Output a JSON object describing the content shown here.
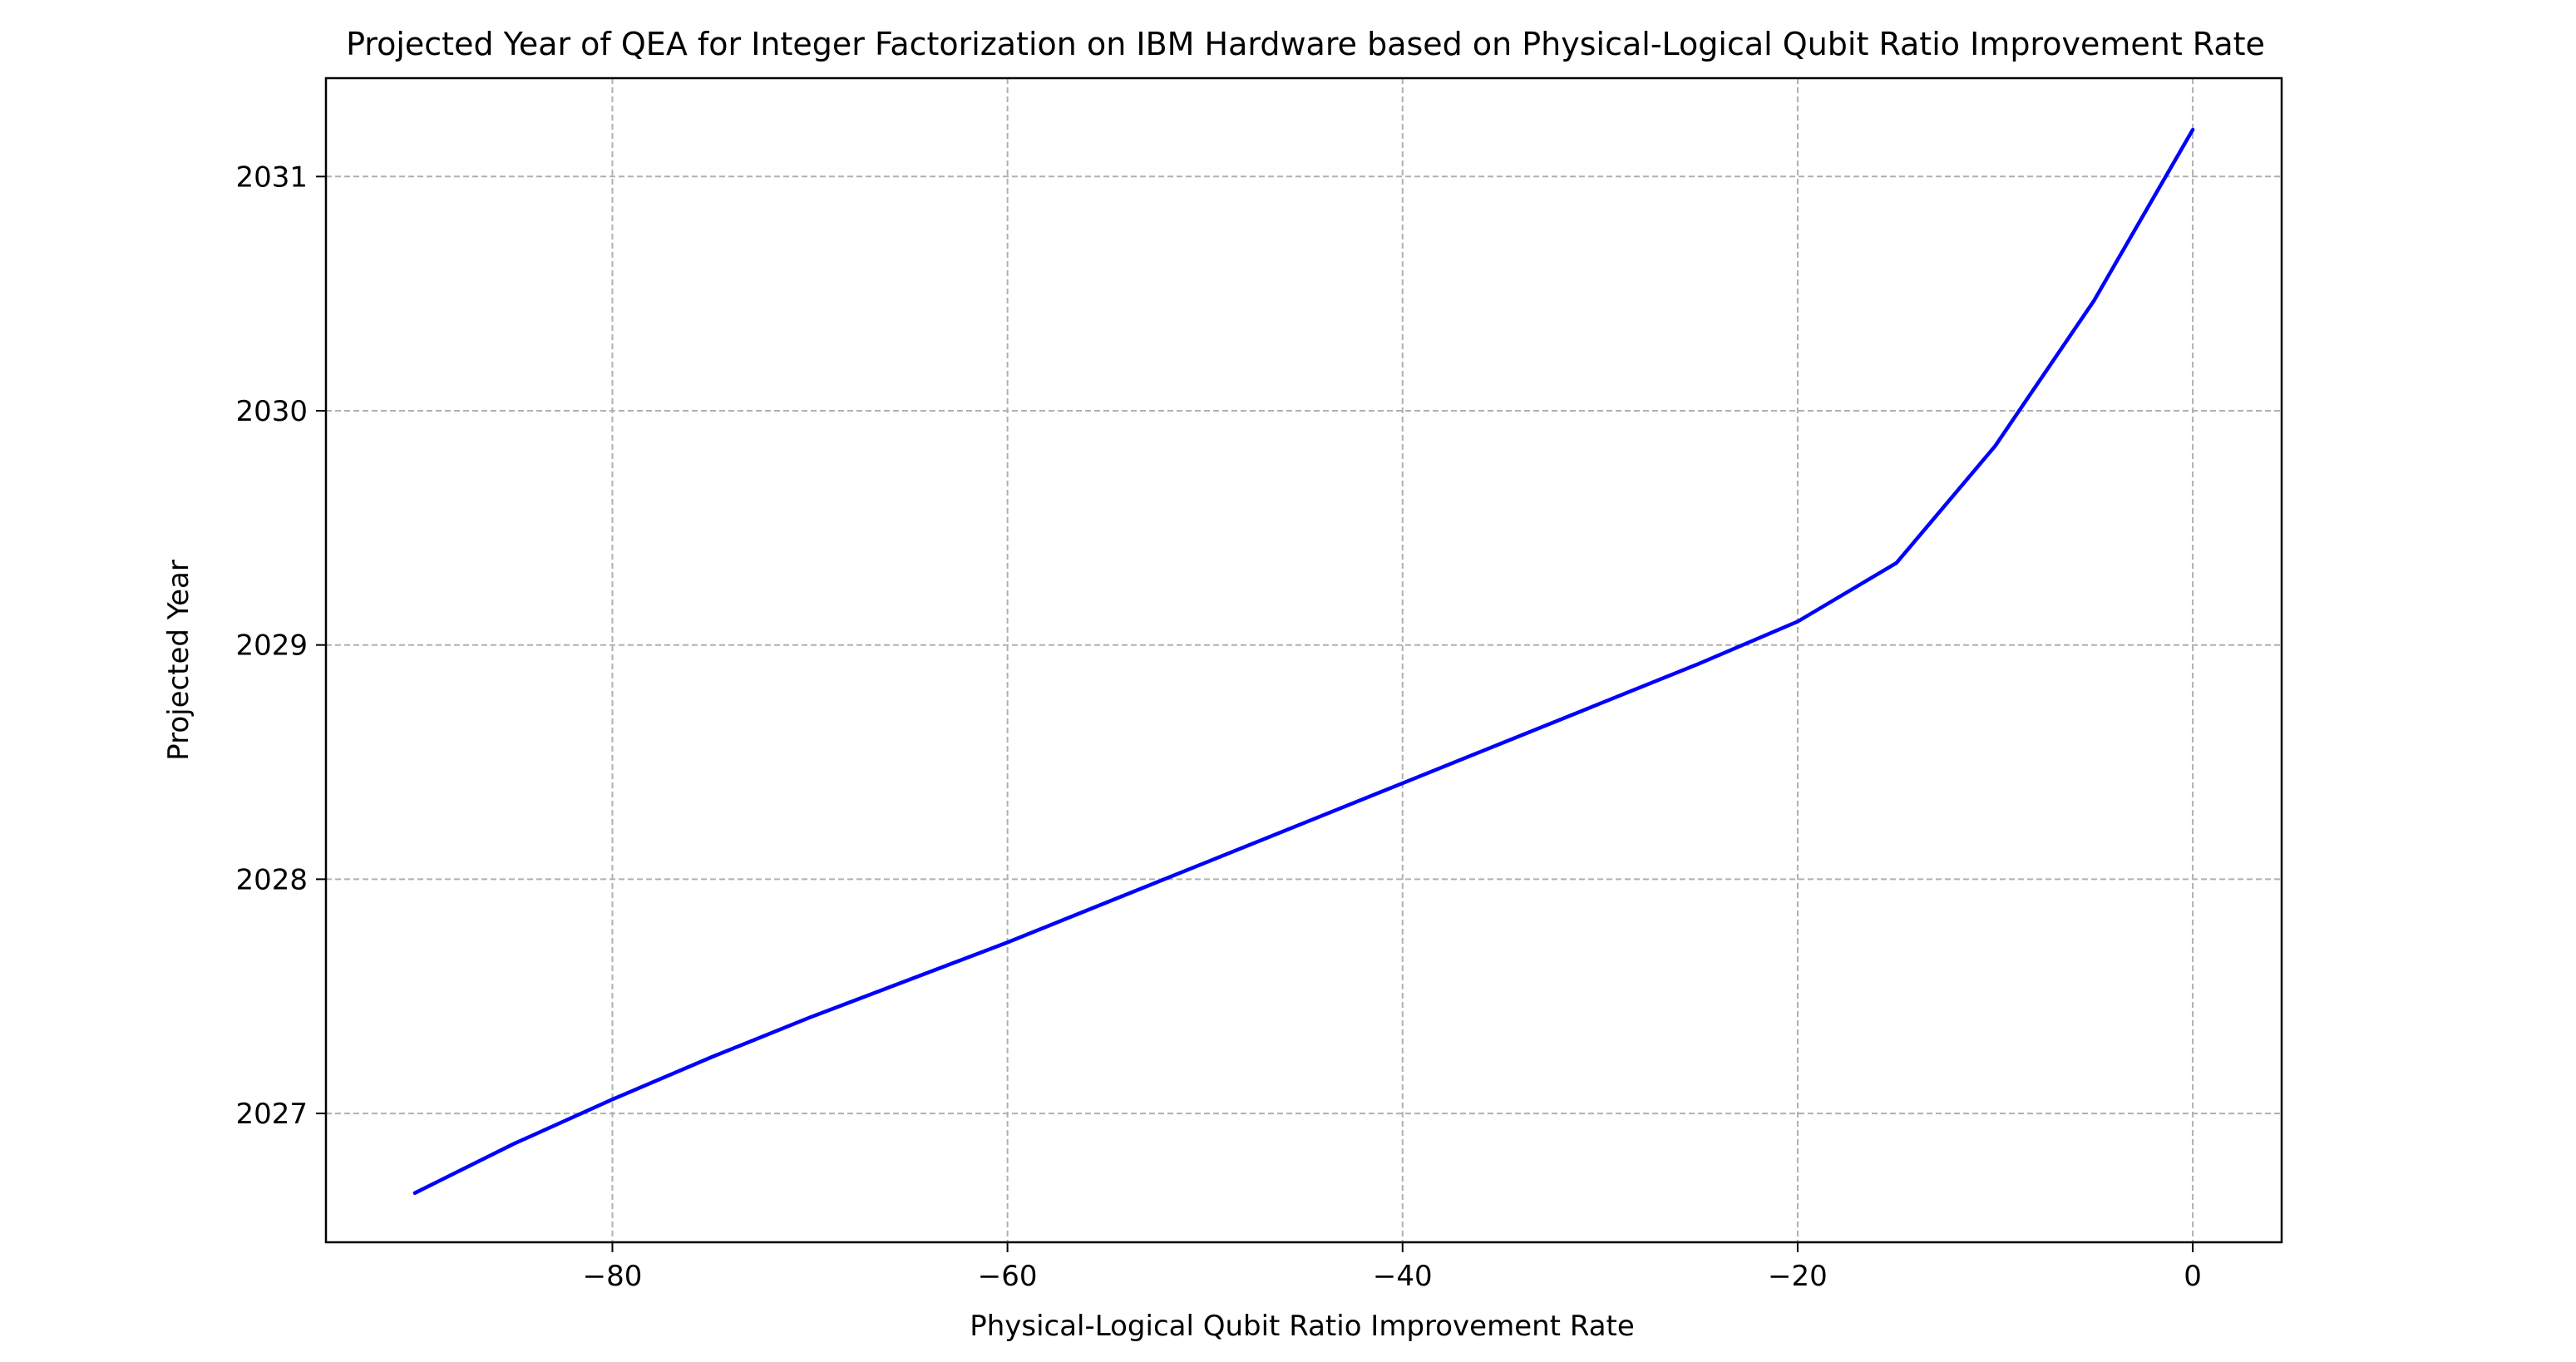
{
  "chart_data": {
    "type": "line",
    "title": "Projected Year of QEA for Integer Factorization on IBM Hardware based on Physical-Logical Qubit Ratio Improvement Rate",
    "xlabel": "Physical-Logical Qubit Ratio Improvement Rate",
    "ylabel": "Projected Year",
    "xlim": [
      -94.5,
      4.5
    ],
    "ylim": [
      2026.45,
      2031.42
    ],
    "xticks": [
      -80,
      -60,
      -40,
      -20,
      0
    ],
    "xtick_labels": [
      "−80",
      "−60",
      "−40",
      "−20",
      "0"
    ],
    "yticks": [
      2027,
      2028,
      2029,
      2030,
      2031
    ],
    "ytick_labels": [
      "2027",
      "2028",
      "2029",
      "2030",
      "2031"
    ],
    "grid": true,
    "line_color": "#0000ff",
    "x": [
      -90,
      -85,
      -80,
      -75,
      -70,
      -65,
      -60,
      -55,
      -50,
      -45,
      -40,
      -35,
      -30,
      -25,
      -20,
      -15,
      -10,
      -5,
      0
    ],
    "series": [
      {
        "values": [
          2026.66,
          2026.87,
          2027.06,
          2027.24,
          2027.41,
          2027.57,
          2027.73,
          2027.9,
          2028.07,
          2028.24,
          2028.41,
          2028.58,
          2028.75,
          2028.92,
          2029.1,
          2029.35,
          2029.85,
          2030.47,
          2031.2
        ]
      }
    ]
  }
}
